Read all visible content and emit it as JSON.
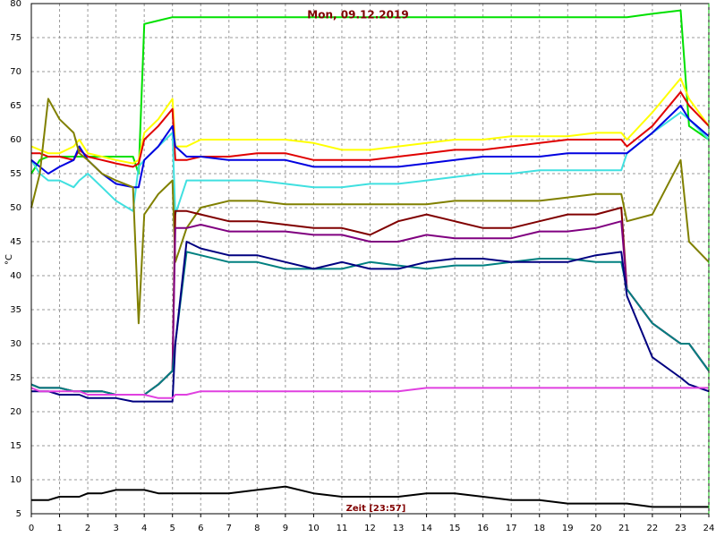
{
  "chart_data": {
    "type": "line",
    "title": "Mon, 09.12.2019",
    "x_label": "Zeit [23:57]",
    "y_label": "°C",
    "grid": true,
    "x": [
      0,
      0.3,
      0.6,
      1,
      1.5,
      1.7,
      2,
      2.5,
      3,
      3.6,
      3.8,
      4,
      4.5,
      5,
      5.1,
      5.5,
      6,
      7,
      8,
      9,
      10,
      11,
      12,
      13,
      14,
      15,
      16,
      17,
      18,
      19,
      20,
      20.9,
      21.1,
      22,
      23,
      23.3,
      24
    ],
    "xlim": [
      0,
      24
    ],
    "xticks": [
      0,
      1,
      2,
      3,
      4,
      5,
      6,
      7,
      8,
      9,
      10,
      11,
      12,
      13,
      14,
      15,
      16,
      17,
      18,
      19,
      20,
      21,
      22,
      23,
      24
    ],
    "ylim": [
      5,
      80
    ],
    "yticks": [
      5,
      10,
      15,
      20,
      25,
      30,
      35,
      40,
      45,
      50,
      55,
      60,
      65,
      70,
      75,
      80
    ],
    "series": [
      {
        "color": "#00e000",
        "values": [
          55,
          57,
          57.5,
          57.5,
          57.5,
          57.5,
          57.5,
          57.5,
          57.5,
          57.5,
          55,
          77,
          77.5,
          78,
          78,
          78,
          78,
          78,
          78,
          78,
          78,
          78,
          78,
          78,
          78,
          78,
          78,
          78,
          78,
          78,
          78,
          78,
          78,
          78.5,
          79,
          62,
          60
        ]
      },
      {
        "color": "#ffff00",
        "values": [
          59,
          58.5,
          58,
          58,
          59,
          60,
          58,
          57.5,
          57,
          56.5,
          57,
          61,
          63,
          66,
          59,
          59,
          60,
          60,
          60,
          60,
          59.5,
          58.5,
          58.5,
          59,
          59.5,
          60,
          60,
          60.5,
          60.5,
          60.5,
          61,
          61,
          60,
          64,
          69,
          66,
          62
        ]
      },
      {
        "color": "#e00000",
        "values": [
          58,
          58,
          57.5,
          57.5,
          57,
          58.5,
          57.5,
          57,
          56.5,
          56,
          56.5,
          60,
          62,
          64.5,
          57,
          57,
          57.5,
          57.5,
          58,
          58,
          57,
          57,
          57,
          57.5,
          58,
          58.5,
          58.5,
          59,
          59.5,
          60,
          60,
          60,
          59,
          62,
          67,
          65,
          62
        ]
      },
      {
        "color": "#40e0e0",
        "values": [
          57,
          55,
          54,
          54,
          53,
          54,
          55,
          53,
          51,
          49.5,
          56,
          57,
          59,
          61,
          49,
          54,
          54,
          54,
          54,
          53.5,
          53,
          53,
          53.5,
          53.5,
          54,
          54.5,
          55,
          55,
          55.5,
          55.5,
          55.5,
          55.5,
          58,
          61,
          64,
          63,
          60
        ]
      },
      {
        "color": "#0000e0",
        "values": [
          57,
          56,
          55,
          56,
          57,
          59,
          57,
          55,
          53.5,
          53,
          53,
          57,
          59,
          62,
          59,
          57.5,
          57.5,
          57,
          57,
          57,
          56,
          56,
          56,
          56,
          56.5,
          57,
          57.5,
          57.5,
          57.5,
          58,
          58,
          58,
          58,
          61,
          65,
          63,
          60.5
        ]
      },
      {
        "color": "#808000",
        "values": [
          50,
          55,
          66,
          63,
          61,
          58,
          57,
          55,
          54,
          53,
          33,
          49,
          52,
          54,
          42,
          47,
          50,
          51,
          51,
          50.5,
          50.5,
          50.5,
          50.5,
          50.5,
          50.5,
          51,
          51,
          51,
          51,
          51.5,
          52,
          52,
          48,
          49,
          57,
          45,
          42
        ]
      },
      {
        "color": "#800000",
        "values": [
          24,
          23.5,
          23.5,
          23.5,
          23,
          23,
          23,
          23,
          22.5,
          22.5,
          22.5,
          22.5,
          24,
          26,
          49.5,
          49.5,
          49,
          48,
          48,
          47.5,
          47,
          47,
          46,
          48,
          49,
          48,
          47,
          47,
          48,
          49,
          49,
          50,
          38,
          33,
          30,
          30,
          26
        ]
      },
      {
        "color": "#800080",
        "values": [
          24,
          23.5,
          23.5,
          23.5,
          23,
          23,
          23,
          23,
          22.5,
          22.5,
          22.5,
          22.5,
          24,
          26,
          47,
          47,
          47.5,
          46.5,
          46.5,
          46.5,
          46,
          46,
          45,
          45,
          46,
          45.5,
          45.5,
          45.5,
          46.5,
          46.5,
          47,
          48,
          38,
          33,
          30,
          30,
          26
        ]
      },
      {
        "color": "#008080",
        "values": [
          24,
          23.5,
          23.5,
          23.5,
          23,
          23,
          23,
          23,
          22.5,
          22.5,
          22.5,
          22.5,
          24,
          26,
          30,
          43.5,
          43,
          42,
          42,
          41,
          41,
          41,
          42,
          41.5,
          41,
          41.5,
          41.5,
          42,
          42.5,
          42.5,
          42,
          42,
          38,
          33,
          30,
          30,
          26
        ]
      },
      {
        "color": "#000080",
        "values": [
          23,
          23,
          23,
          22.5,
          22.5,
          22.5,
          22,
          22,
          22,
          21.5,
          21.5,
          21.5,
          21.5,
          21.5,
          30,
          45,
          44,
          43,
          43,
          42,
          41,
          42,
          41,
          41,
          42,
          42.5,
          42.5,
          42,
          42,
          42,
          43,
          43.5,
          37,
          28,
          25,
          24,
          23
        ]
      },
      {
        "color": "#e040e0",
        "values": [
          23.5,
          23,
          23,
          23,
          23,
          23,
          22.5,
          22.5,
          22.5,
          22.5,
          22.5,
          22.5,
          22,
          22,
          22.5,
          22.5,
          23,
          23,
          23,
          23,
          23,
          23,
          23,
          23,
          23.5,
          23.5,
          23.5,
          23.5,
          23.5,
          23.5,
          23.5,
          23.5,
          23.5,
          23.5,
          23.5,
          23.5,
          23.5
        ]
      },
      {
        "color": "#000000",
        "values": [
          7,
          7,
          7,
          7.5,
          7.5,
          7.5,
          8,
          8,
          8.5,
          8.5,
          8.5,
          8.5,
          8,
          8,
          8,
          8,
          8,
          8,
          8.5,
          9,
          8,
          7.5,
          7.5,
          7.5,
          8,
          8,
          7.5,
          7,
          7,
          6.5,
          6.5,
          6.5,
          6.5,
          6,
          6,
          6,
          6
        ]
      }
    ]
  }
}
